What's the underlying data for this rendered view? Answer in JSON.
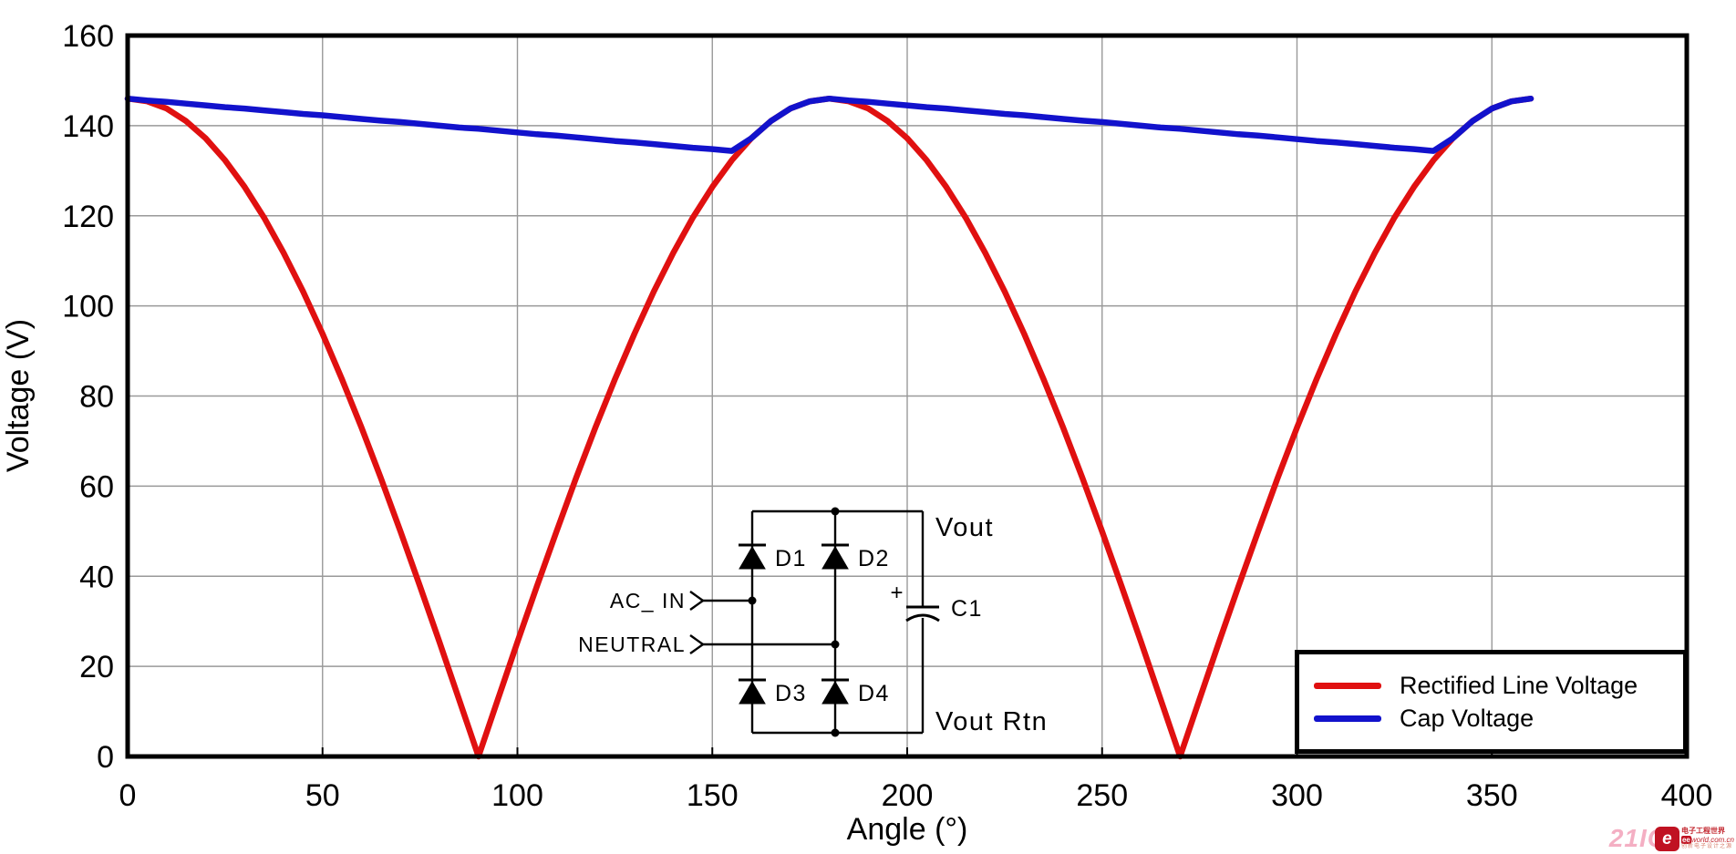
{
  "chart_data": {
    "type": "line",
    "title": "",
    "xlabel": "Angle (°)",
    "ylabel": "Voltage (V)",
    "xlim": [
      0,
      400
    ],
    "ylim": [
      0,
      160
    ],
    "x_ticks": [
      0,
      50,
      100,
      150,
      200,
      250,
      300,
      350,
      400
    ],
    "y_ticks": [
      0,
      20,
      40,
      60,
      80,
      100,
      120,
      140,
      160
    ],
    "grid": true,
    "grid_color": "#999999",
    "legend_position": "lower right",
    "x": [
      0,
      5,
      10,
      15,
      20,
      25,
      30,
      35,
      40,
      45,
      50,
      55,
      60,
      65,
      70,
      75,
      80,
      85,
      90,
      95,
      100,
      105,
      110,
      115,
      120,
      125,
      130,
      135,
      140,
      145,
      150,
      155,
      160,
      165,
      170,
      175,
      180,
      185,
      190,
      195,
      200,
      205,
      210,
      215,
      220,
      225,
      230,
      235,
      240,
      245,
      250,
      255,
      260,
      265,
      270,
      275,
      280,
      285,
      290,
      295,
      300,
      305,
      310,
      315,
      320,
      325,
      330,
      335,
      340,
      345,
      350,
      355,
      360
    ],
    "series": [
      {
        "name": "Rectified Line Voltage",
        "color": "#e01010",
        "values": [
          146,
          145.4,
          143.8,
          141,
          137.2,
          132.3,
          126.4,
          119.6,
          111.8,
          103.2,
          93.8,
          83.7,
          73,
          61.7,
          49.9,
          37.8,
          25.4,
          12.7,
          0,
          12.7,
          25.4,
          37.8,
          49.9,
          61.7,
          73,
          83.7,
          93.8,
          103.2,
          111.8,
          119.6,
          126.4,
          132.3,
          137.2,
          141,
          143.8,
          145.4,
          146,
          145.4,
          143.8,
          141,
          137.2,
          132.3,
          126.4,
          119.6,
          111.8,
          103.2,
          93.8,
          83.7,
          73,
          61.7,
          49.9,
          37.8,
          25.4,
          12.7,
          0,
          12.7,
          25.4,
          37.8,
          49.9,
          61.7,
          73,
          83.7,
          93.8,
          103.2,
          111.8,
          119.6,
          126.4,
          132.3,
          137.2,
          141,
          143.8,
          145.4,
          146
        ]
      },
      {
        "name": "Cap Voltage",
        "color": "#1212cc",
        "values": [
          146,
          145.6,
          145.3,
          144.9,
          144.5,
          144.1,
          143.8,
          143.4,
          143,
          142.6,
          142.3,
          141.9,
          141.5,
          141.1,
          140.8,
          140.4,
          140,
          139.6,
          139.3,
          138.9,
          138.5,
          138.1,
          137.8,
          137.4,
          137,
          136.6,
          136.3,
          135.9,
          135.5,
          135.1,
          134.8,
          134.4,
          137.2,
          141,
          143.8,
          145.4,
          146,
          145.6,
          145.3,
          144.9,
          144.5,
          144.1,
          143.8,
          143.4,
          143,
          142.6,
          142.3,
          141.9,
          141.5,
          141.1,
          140.8,
          140.4,
          140,
          139.6,
          139.3,
          138.9,
          138.5,
          138.1,
          137.8,
          137.4,
          137,
          136.6,
          136.3,
          135.9,
          135.5,
          135.1,
          134.8,
          134.4,
          137.2,
          141,
          143.8,
          145.4,
          146
        ]
      }
    ]
  },
  "schematic": {
    "labels": {
      "ac_in": "AC_ IN",
      "neutral": "NEUTRAL",
      "d1": "D1",
      "d2": "D2",
      "d3": "D3",
      "d4": "D4",
      "c1": "C1",
      "plus": "+",
      "vout": "Vout",
      "vout_rtn": "Vout Rtn"
    }
  },
  "watermark": {
    "site": "21IC",
    "logo_glyph": "e",
    "name_cn": "电子工程世界",
    "domain_prefix": "ee",
    "domain_rest": "world.com.cn",
    "tagline": "创新电子设计之源"
  }
}
